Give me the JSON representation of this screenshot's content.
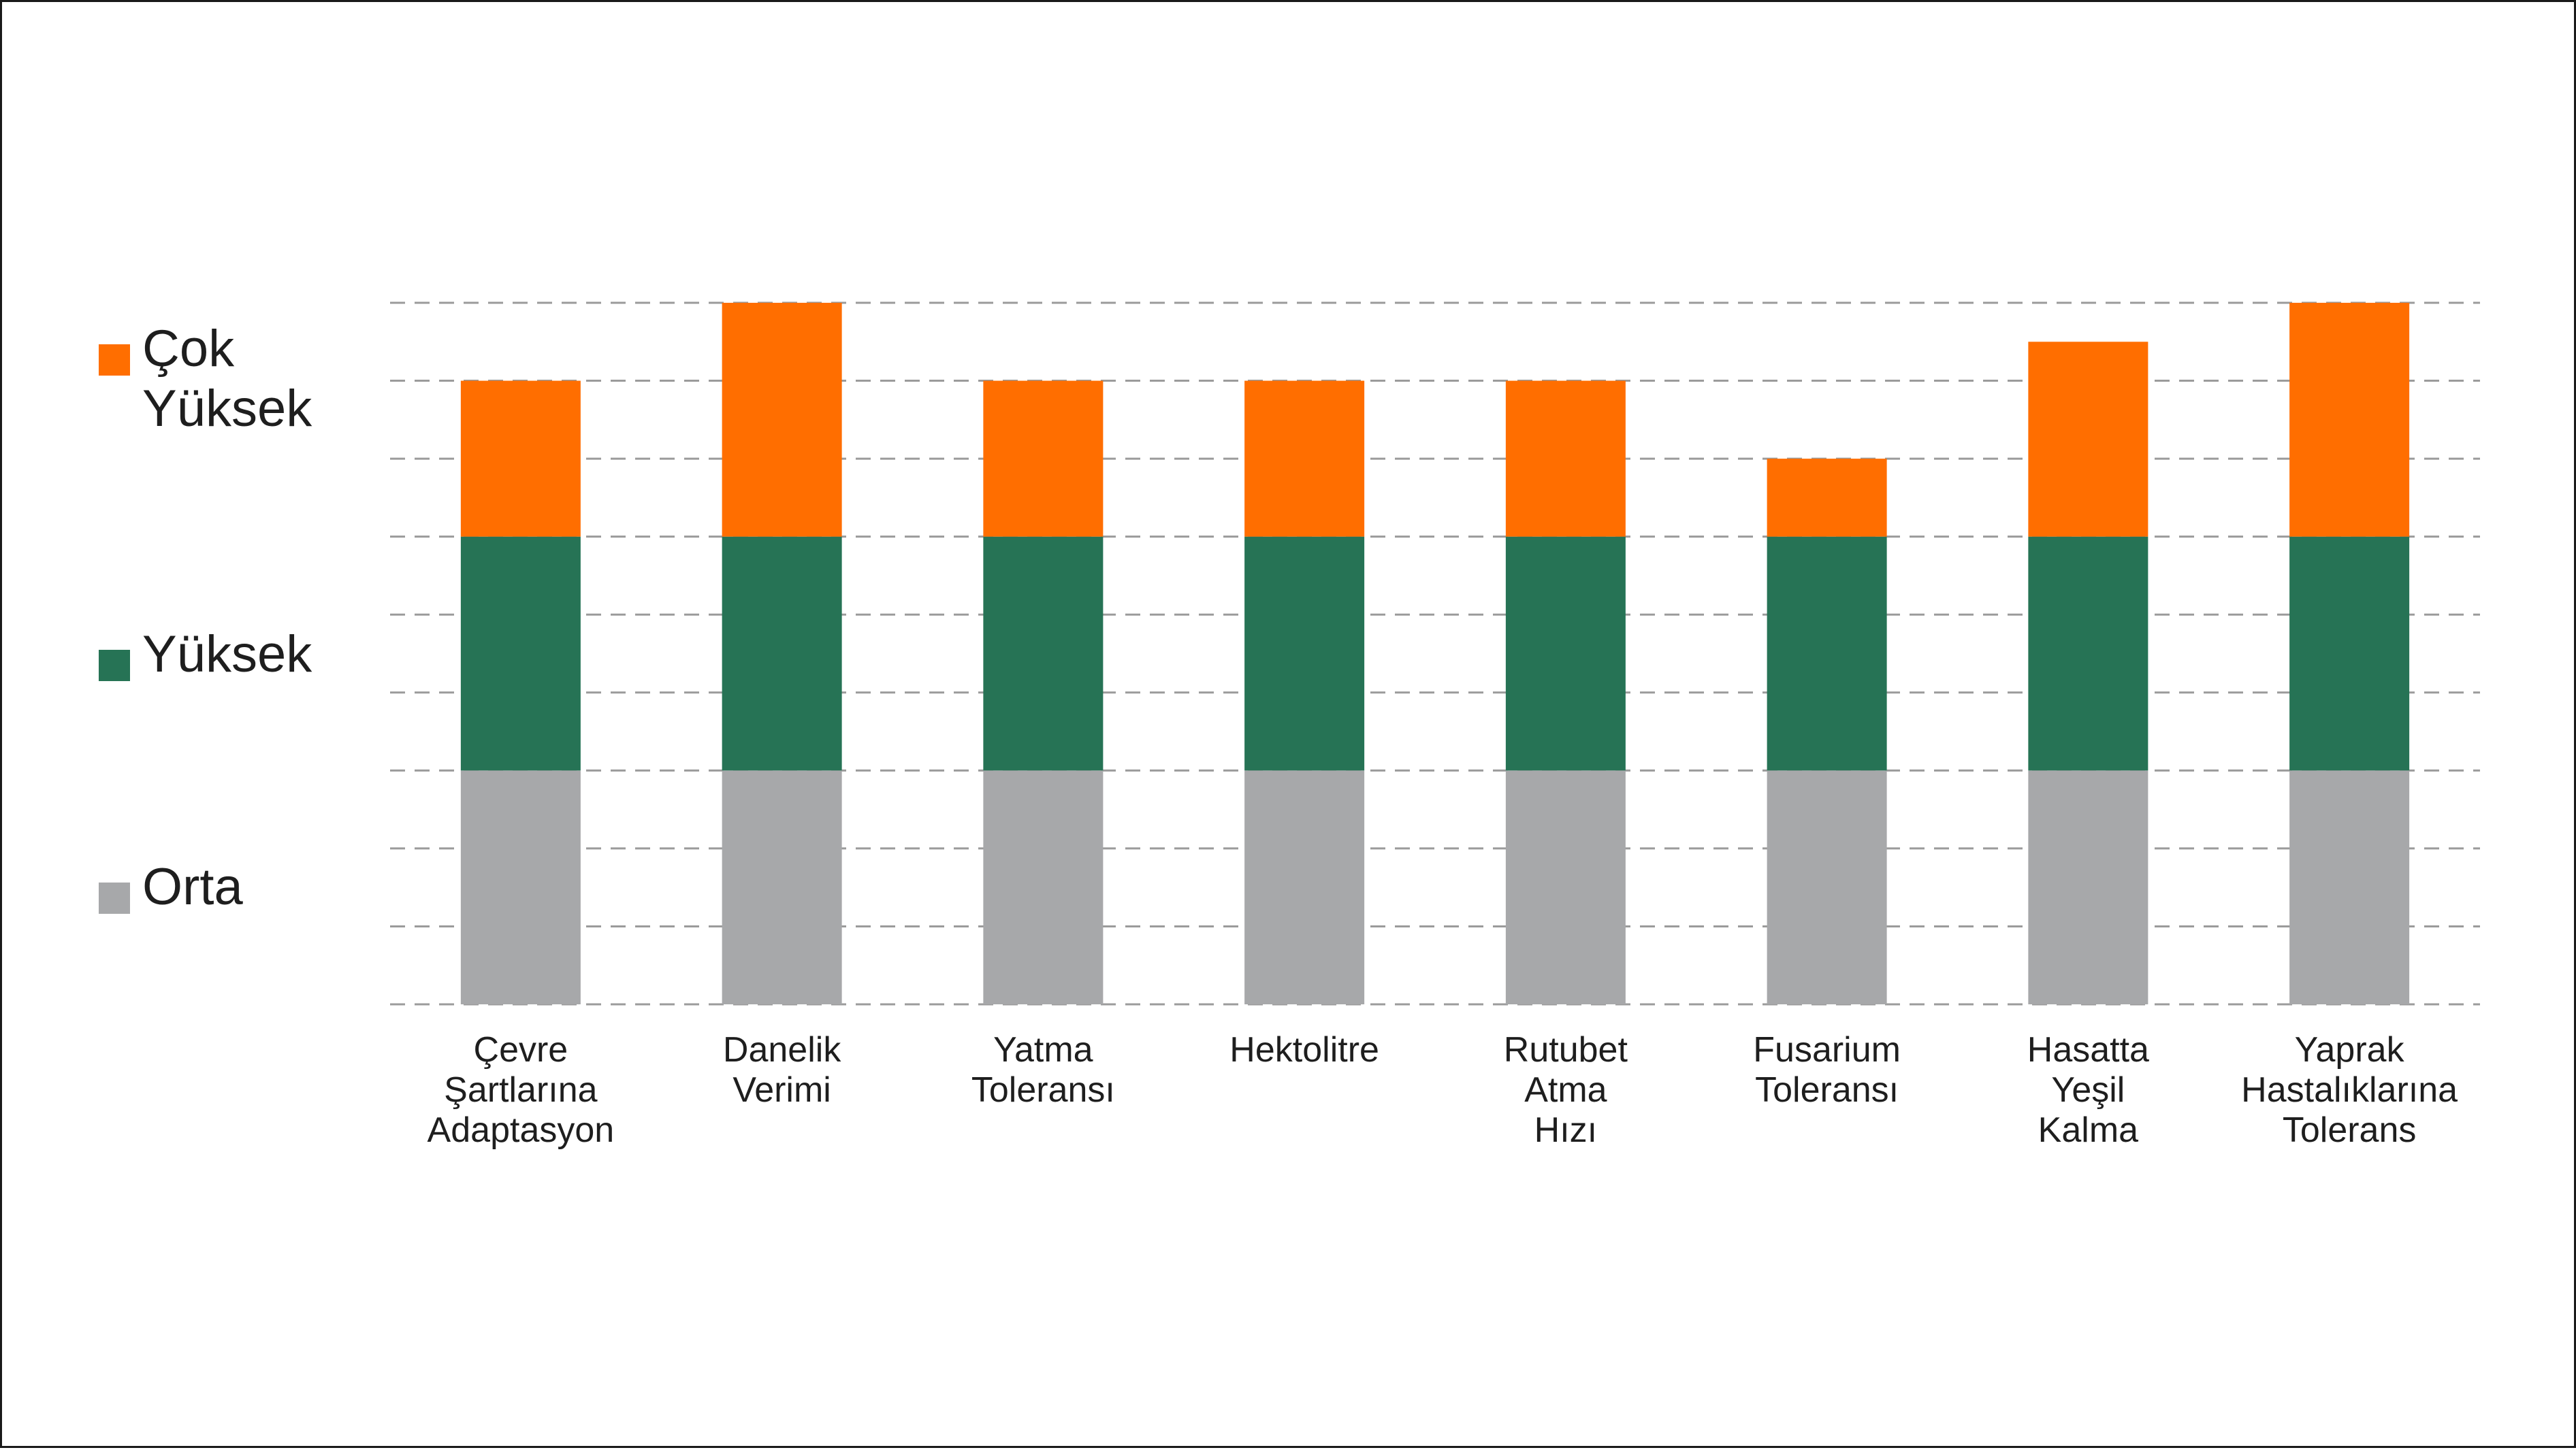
{
  "chart_data": {
    "type": "bar",
    "stacked": true,
    "title": "",
    "xlabel": "",
    "ylabel": "",
    "ylim": [
      0,
      9
    ],
    "grid": true,
    "legend_position": "left",
    "categories": [
      "Çevre Şartlarına Adaptasyon",
      "Danelik Verimi",
      "Yatma Toleransı",
      "Hektolitre",
      "Rutubet Atma Hızı",
      "Fusarium Toleransı",
      "Hasatta Yeşil Kalma",
      "Yaprak Hastalıklarına Tolerans"
    ],
    "category_lines": [
      [
        "Çevre",
        "Şartlarına",
        "Adaptasyon"
      ],
      [
        "Danelik",
        "Verimi"
      ],
      [
        "Yatma",
        "Toleransı"
      ],
      [
        "Hektolitre"
      ],
      [
        "Rutubet",
        "Atma",
        "Hızı"
      ],
      [
        "Fusarium",
        "Toleransı"
      ],
      [
        "Hasatta",
        "Yeşil",
        "Kalma"
      ],
      [
        "Yaprak",
        "Hastalıklarına",
        "Tolerans"
      ]
    ],
    "series": [
      {
        "name": "Orta",
        "color": "#a7a8aa",
        "values": [
          3,
          3,
          3,
          3,
          3,
          3,
          3,
          3
        ]
      },
      {
        "name": "Yüksek",
        "color": "#267355",
        "values": [
          3,
          3,
          3,
          3,
          3,
          3,
          3,
          3
        ]
      },
      {
        "name": "Çok Yüksek",
        "color": "#ff6e00",
        "values": [
          2,
          3,
          2,
          2,
          2,
          1,
          2.5,
          3
        ]
      }
    ]
  },
  "legend": [
    {
      "label": "Çok Yüksek",
      "color": "#ff6e00"
    },
    {
      "label": "Yüksek",
      "color": "#267355"
    },
    {
      "label": "Orta",
      "color": "#a7a8aa"
    }
  ]
}
